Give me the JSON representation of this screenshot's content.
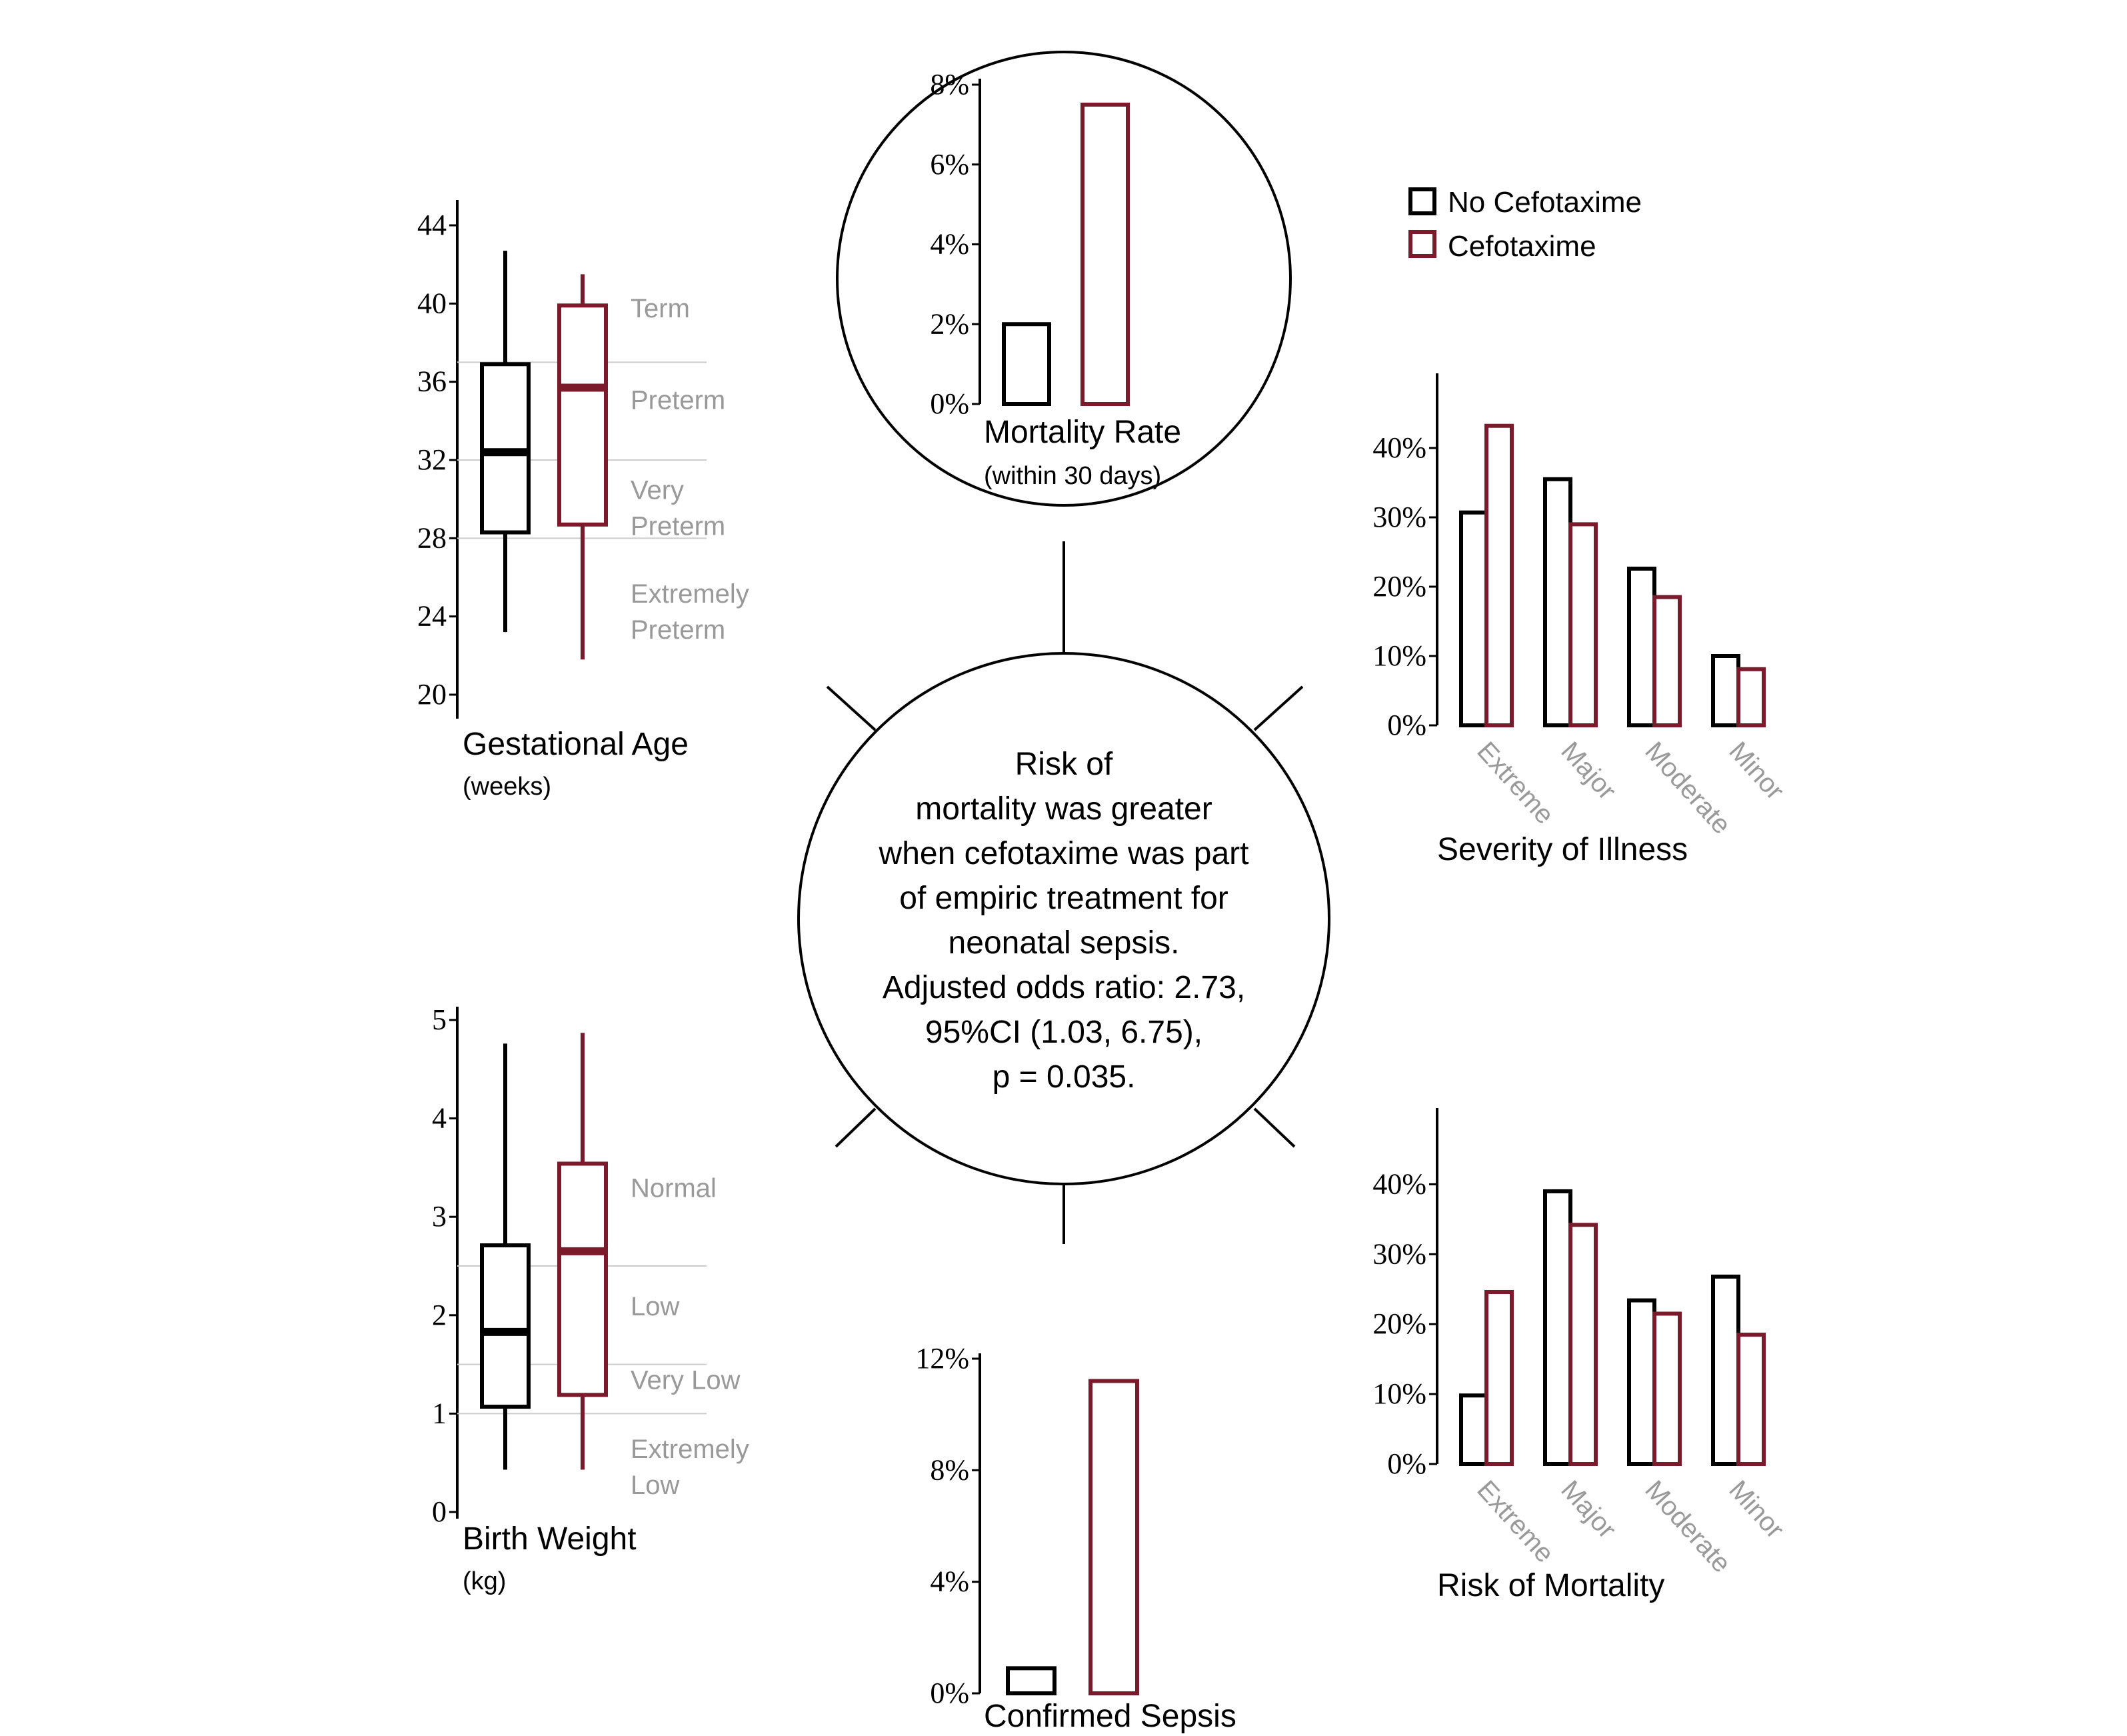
{
  "colors": {
    "no_cefotaxime": "#000000",
    "cefotaxime": "#7b1a2a",
    "category_label": "#999999",
    "gridline": "#cccccc"
  },
  "legend": {
    "items": [
      {
        "label": "No Cefotaxime",
        "color": "#000000"
      },
      {
        "label": "Cefotaxime",
        "color": "#7b1a2a"
      }
    ]
  },
  "center": {
    "lines": [
      "Risk of",
      "mortality was greater",
      "when cefotaxime was part",
      "of  empiric treatment for",
      "neonatal sepsis.",
      "Adjusted odds ratio: 2.73,",
      "95%CI (1.03, 6.75),",
      "p = 0.035."
    ]
  },
  "chart_data": [
    {
      "id": "mortality_rate",
      "type": "bar",
      "title": "Mortality Rate",
      "subtitle": "(within 30 days)",
      "categories": [
        "No Cefotaxime",
        "Cefotaxime"
      ],
      "values": [
        2.0,
        7.5
      ],
      "ylim": [
        0,
        8
      ],
      "yticks": [
        0,
        2,
        4,
        6,
        8
      ],
      "ytick_labels": [
        "0%",
        "2%",
        "4%",
        "6%",
        "8%"
      ]
    },
    {
      "id": "gestational_age",
      "type": "boxplot",
      "title": "Gestational Age",
      "subtitle": "(weeks)",
      "ylim": [
        20,
        44
      ],
      "yticks": [
        20,
        24,
        28,
        32,
        36,
        40,
        44
      ],
      "ytick_labels": [
        "20",
        "24",
        "28",
        "32",
        "36",
        "40",
        "44"
      ],
      "series": [
        {
          "name": "No Cefotaxime",
          "min": 23.2,
          "q1": 28.3,
          "median": 32.4,
          "q3": 36.9,
          "max": 42.7
        },
        {
          "name": "Cefotaxime",
          "min": 21.8,
          "q1": 28.7,
          "median": 35.7,
          "q3": 39.9,
          "max": 41.5
        }
      ],
      "reference_lines": [
        37,
        32,
        28
      ],
      "zones": [
        {
          "lines": [
            "Term"
          ],
          "at": 39.3
        },
        {
          "lines": [
            "Preterm"
          ],
          "at": 34.6
        },
        {
          "lines": [
            "Very",
            "Preterm"
          ],
          "at": 30.0
        },
        {
          "lines": [
            "Extremely",
            "Preterm"
          ],
          "at": 24.7
        }
      ]
    },
    {
      "id": "birth_weight",
      "type": "boxplot",
      "title": "Birth Weight",
      "subtitle": "(kg)",
      "ylim": [
        0,
        5
      ],
      "yticks": [
        0,
        1,
        2,
        3,
        4,
        5
      ],
      "ytick_labels": [
        "0",
        "1",
        "2",
        "3",
        "4",
        "5"
      ],
      "series": [
        {
          "name": "No Cefotaxime",
          "min": 0.43,
          "q1": 1.07,
          "median": 1.83,
          "q3": 2.71,
          "max": 4.76
        },
        {
          "name": "Cefotaxime",
          "min": 0.43,
          "q1": 1.19,
          "median": 2.65,
          "q3": 3.54,
          "max": 4.87
        }
      ],
      "reference_lines": [
        2.5,
        1.5,
        1.0
      ],
      "zones": [
        {
          "lines": [
            "Normal"
          ],
          "at": 3.2
        },
        {
          "lines": [
            "Low"
          ],
          "at": 2.0
        },
        {
          "lines": [
            "Very Low"
          ],
          "at": 1.25
        },
        {
          "lines": [
            "Extremely",
            "Low"
          ],
          "at": 0.55
        }
      ]
    },
    {
      "id": "severity_of_illness",
      "type": "bar",
      "title": "Severity of Illness",
      "categories": [
        "Extreme",
        "Major",
        "Moderate",
        "Minor"
      ],
      "series": [
        {
          "name": "No Cefotaxime",
          "values": [
            30.7,
            35.5,
            22.6,
            10.0
          ]
        },
        {
          "name": "Cefotaxime",
          "values": [
            43.2,
            29.0,
            18.5,
            8.1
          ]
        }
      ],
      "ylim": [
        0,
        45
      ],
      "yticks": [
        0,
        10,
        20,
        30,
        40
      ],
      "ytick_labels": [
        "0%",
        "10%",
        "20%",
        "30%",
        "40%"
      ]
    },
    {
      "id": "risk_of_mortality",
      "type": "bar",
      "title": "Risk of Mortality",
      "categories": [
        "Extreme",
        "Major",
        "Moderate",
        "Minor"
      ],
      "series": [
        {
          "name": "No Cefotaxime",
          "values": [
            9.8,
            39.0,
            23.4,
            26.8
          ]
        },
        {
          "name": "Cefotaxime",
          "values": [
            24.6,
            34.2,
            21.5,
            18.5
          ]
        }
      ],
      "ylim": [
        0,
        45
      ],
      "yticks": [
        0,
        10,
        20,
        30,
        40
      ],
      "ytick_labels": [
        "0%",
        "10%",
        "20%",
        "30%",
        "40%"
      ]
    },
    {
      "id": "confirmed_sepsis",
      "type": "bar",
      "title": "Confirmed Sepsis",
      "categories": [
        "No Cefotaxime",
        "Cefotaxime"
      ],
      "values": [
        0.9,
        11.2
      ],
      "ylim": [
        0,
        12
      ],
      "yticks": [
        0,
        4,
        8,
        12
      ],
      "ytick_labels": [
        "0%",
        "4%",
        "8%",
        "12%"
      ]
    }
  ]
}
